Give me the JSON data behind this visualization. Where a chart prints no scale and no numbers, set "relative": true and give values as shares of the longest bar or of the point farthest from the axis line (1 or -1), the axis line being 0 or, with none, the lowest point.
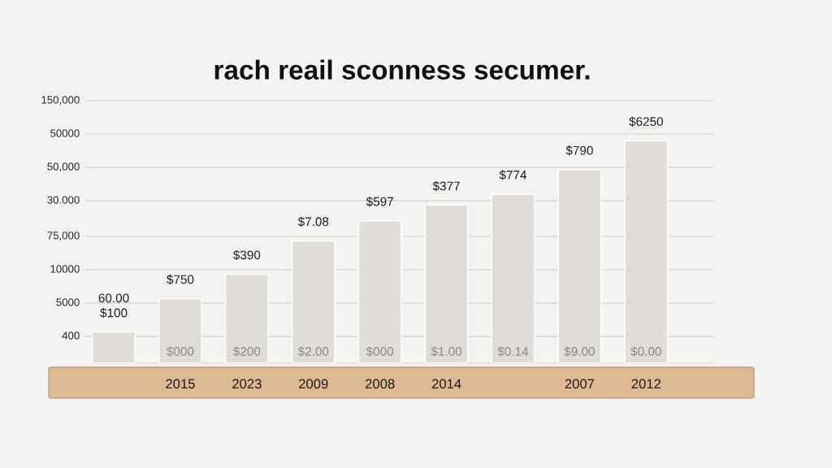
{
  "chart_data": {
    "type": "bar",
    "title": "rach reail sconness secumer.",
    "relative": true,
    "categories": [
      null,
      "2015",
      "2023",
      "2009",
      "2008",
      "2014",
      null,
      "2007",
      "2012"
    ],
    "values": [
      0.14,
      0.29,
      0.4,
      0.55,
      0.64,
      0.71,
      0.76,
      0.87,
      1
    ],
    "color": "#e0ddd8",
    "annotations": [
      "150,000",
      "50000",
      "50,000",
      "30.000",
      "75,000",
      "10000",
      "5000",
      "400",
      "$000",
      "$200",
      "$2.00",
      "$000",
      "$1.00",
      "$0.14",
      "$9.00",
      "$0.00",
      {
        "text": "60.00\n$100",
        "y": 0.14
      },
      {
        "text": "$750",
        "x": "2015",
        "y": 0.29
      },
      {
        "text": "$390",
        "x": "2023",
        "y": 0.4
      },
      {
        "text": "$7.08",
        "x": "2009",
        "y": 0.55
      },
      {
        "text": "$597",
        "x": "2008",
        "y": 0.64
      },
      {
        "text": "$377",
        "x": "2014",
        "y": 0.71
      },
      {
        "text": "$774",
        "y": 0.76
      },
      {
        "text": "$790",
        "x": "2007",
        "y": 0.87
      },
      {
        "text": "$6250",
        "x": "2012",
        "y": 1
      }
    ],
    "ref_lines": [
      {
        "axis": "y",
        "value": 1.18
      },
      {
        "axis": "y",
        "value": 1.03
      },
      {
        "axis": "y",
        "value": 0.88
      },
      {
        "axis": "y",
        "value": 0.73
      },
      {
        "axis": "y",
        "value": 0.57
      },
      {
        "axis": "y",
        "value": 0.42
      },
      {
        "axis": "y",
        "value": 0.27
      },
      {
        "axis": "y",
        "value": 0.12
      }
    ]
  }
}
